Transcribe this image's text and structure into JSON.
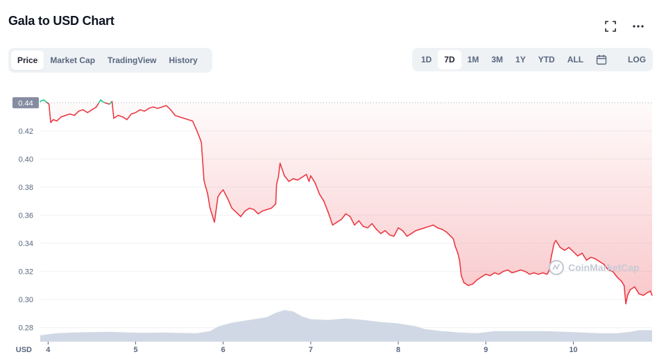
{
  "header": {
    "title": "Gala to USD Chart",
    "fullscreen_icon": "fullscreen-icon",
    "more_icon": "more-horizontal-icon"
  },
  "view_tabs": [
    {
      "label": "Price",
      "active": true
    },
    {
      "label": "Market Cap",
      "active": false
    },
    {
      "label": "TradingView",
      "active": false
    },
    {
      "label": "History",
      "active": false
    }
  ],
  "range_tabs": [
    {
      "label": "1D",
      "active": false
    },
    {
      "label": "7D",
      "active": true
    },
    {
      "label": "1M",
      "active": false
    },
    {
      "label": "3M",
      "active": false
    },
    {
      "label": "1Y",
      "active": false
    },
    {
      "label": "YTD",
      "active": false
    },
    {
      "label": "ALL",
      "active": false
    }
  ],
  "calendar_icon": "calendar-icon",
  "log_label": "LOG",
  "colors": {
    "down": "#ea3943",
    "up": "#16c784",
    "volume": "#cfd6e4",
    "reference_tag": "#858ca2"
  },
  "chart_data": {
    "type": "line",
    "ylabel": "USD",
    "ylim": [
      0.27,
      0.45
    ],
    "yticks": [
      0.28,
      0.3,
      0.32,
      0.34,
      0.36,
      0.38,
      0.4,
      0.42
    ],
    "xlim": [
      3.91,
      10.9
    ],
    "xticks": [
      "4",
      "5",
      "6",
      "7",
      "8",
      "9",
      "10"
    ],
    "reference_value": 0.44,
    "reference_label": "0.44",
    "watermark": "CoinMarketCap",
    "series": [
      {
        "x": [
          3.91,
          3.95,
          3.99,
          4.01,
          4.03,
          4.06,
          4.1,
          4.15,
          4.2,
          4.25,
          4.3,
          4.35,
          4.4,
          4.45,
          4.5,
          4.55,
          4.58,
          4.6,
          4.62,
          4.65,
          4.7,
          4.73,
          4.75,
          4.8,
          4.85,
          4.9,
          4.95,
          5.0,
          5.05,
          5.1,
          5.15,
          5.2,
          5.25,
          5.3,
          5.35,
          5.4,
          5.45,
          5.5,
          5.55,
          5.6,
          5.65,
          5.7,
          5.75,
          5.78,
          5.8,
          5.82,
          5.85,
          5.9,
          5.94,
          5.97,
          6.0,
          6.05,
          6.1,
          6.15,
          6.2,
          6.25,
          6.3,
          6.35,
          6.4,
          6.45,
          6.5,
          6.55,
          6.6,
          6.61,
          6.63,
          6.65,
          6.7,
          6.75,
          6.8,
          6.85,
          6.9,
          6.95,
          6.98,
          7.0,
          7.05,
          7.1,
          7.15,
          7.2,
          7.25,
          7.3,
          7.35,
          7.4,
          7.45,
          7.5,
          7.55,
          7.6,
          7.65,
          7.7,
          7.75,
          7.8,
          7.85,
          7.9,
          7.95,
          8.0,
          8.05,
          8.1,
          8.15,
          8.2,
          8.25,
          8.3,
          8.35,
          8.4,
          8.45,
          8.5,
          8.55,
          8.6,
          8.63,
          8.65,
          8.68,
          8.7,
          8.72,
          8.75,
          8.8,
          8.85,
          8.9,
          8.95,
          9.0,
          9.05,
          9.1,
          9.15,
          9.2,
          9.25,
          9.3,
          9.35,
          9.4,
          9.45,
          9.5,
          9.55,
          9.6,
          9.65,
          9.7,
          9.72,
          9.75,
          9.78,
          9.8,
          9.85,
          9.9,
          9.95,
          10.0,
          10.05,
          10.1,
          10.15,
          10.2,
          10.25,
          10.3,
          10.35,
          10.4,
          10.45,
          10.5,
          10.55,
          10.58,
          10.6,
          10.62,
          10.65,
          10.7,
          10.75,
          10.8,
          10.85,
          10.88,
          10.9
        ],
        "y": [
          0.441,
          0.442,
          0.44,
          0.439,
          0.426,
          0.428,
          0.427,
          0.43,
          0.431,
          0.432,
          0.431,
          0.434,
          0.435,
          0.433,
          0.435,
          0.437,
          0.44,
          0.442,
          0.441,
          0.44,
          0.439,
          0.441,
          0.429,
          0.431,
          0.43,
          0.428,
          0.432,
          0.433,
          0.435,
          0.434,
          0.436,
          0.437,
          0.436,
          0.437,
          0.438,
          0.435,
          0.431,
          0.43,
          0.429,
          0.428,
          0.427,
          0.42,
          0.412,
          0.385,
          0.38,
          0.376,
          0.365,
          0.355,
          0.373,
          0.376,
          0.378,
          0.372,
          0.365,
          0.362,
          0.359,
          0.363,
          0.365,
          0.364,
          0.361,
          0.363,
          0.364,
          0.365,
          0.368,
          0.382,
          0.387,
          0.397,
          0.388,
          0.384,
          0.386,
          0.385,
          0.387,
          0.389,
          0.384,
          0.388,
          0.383,
          0.375,
          0.37,
          0.362,
          0.353,
          0.355,
          0.357,
          0.361,
          0.359,
          0.353,
          0.356,
          0.352,
          0.351,
          0.354,
          0.35,
          0.347,
          0.349,
          0.346,
          0.345,
          0.351,
          0.349,
          0.345,
          0.347,
          0.349,
          0.35,
          0.351,
          0.352,
          0.353,
          0.351,
          0.35,
          0.348,
          0.345,
          0.343,
          0.338,
          0.333,
          0.328,
          0.317,
          0.312,
          0.31,
          0.311,
          0.314,
          0.316,
          0.318,
          0.317,
          0.319,
          0.318,
          0.32,
          0.321,
          0.319,
          0.32,
          0.321,
          0.32,
          0.318,
          0.319,
          0.318,
          0.319,
          0.318,
          0.32,
          0.331,
          0.34,
          0.342,
          0.337,
          0.335,
          0.337,
          0.334,
          0.331,
          0.333,
          0.328,
          0.33,
          0.329,
          0.327,
          0.325,
          0.321,
          0.32,
          0.316,
          0.313,
          0.31,
          0.297,
          0.303,
          0.307,
          0.309,
          0.304,
          0.303,
          0.305,
          0.306,
          0.303
        ]
      }
    ],
    "volume": {
      "x": [
        3.91,
        4.1,
        4.3,
        4.5,
        4.7,
        4.9,
        5.1,
        5.3,
        5.5,
        5.7,
        5.85,
        5.95,
        6.1,
        6.3,
        6.5,
        6.6,
        6.7,
        6.8,
        6.9,
        7.0,
        7.2,
        7.4,
        7.6,
        7.8,
        8.0,
        8.2,
        8.3,
        8.5,
        8.7,
        8.9,
        9.1,
        9.3,
        9.5,
        9.7,
        9.9,
        10.1,
        10.3,
        10.5,
        10.65,
        10.75,
        10.9
      ],
      "y": [
        0.2745,
        0.276,
        0.2765,
        0.2768,
        0.277,
        0.2766,
        0.2763,
        0.2765,
        0.2762,
        0.276,
        0.2775,
        0.281,
        0.2835,
        0.2855,
        0.2875,
        0.2905,
        0.2925,
        0.2915,
        0.288,
        0.286,
        0.2855,
        0.2865,
        0.2855,
        0.284,
        0.283,
        0.281,
        0.279,
        0.2775,
        0.2765,
        0.276,
        0.2775,
        0.2775,
        0.2775,
        0.2775,
        0.277,
        0.2765,
        0.276,
        0.276,
        0.277,
        0.2782,
        0.2782
      ]
    }
  }
}
